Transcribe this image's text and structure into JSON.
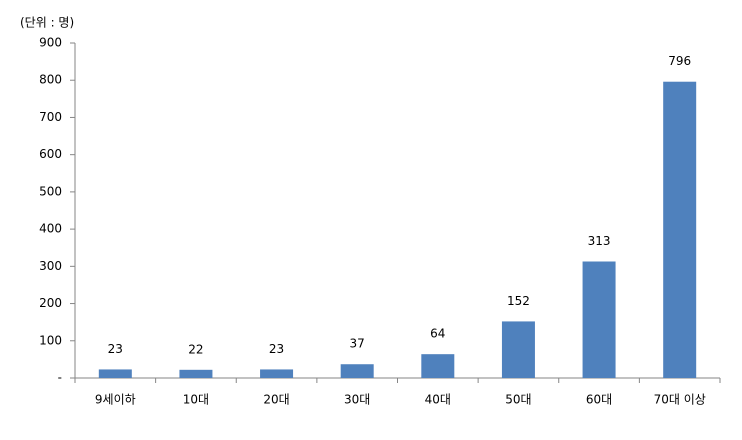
{
  "chart_data": {
    "type": "bar",
    "unit_label": "(단위 : 명)",
    "categories": [
      "9세이하",
      "10대",
      "20대",
      "30대",
      "40대",
      "50대",
      "60대",
      "70대 이상"
    ],
    "values": [
      23,
      22,
      23,
      37,
      64,
      152,
      313,
      796
    ],
    "color": "#4f81bd",
    "ylim": [
      0,
      900
    ],
    "yticks": [
      {
        "value": 0,
        "label": "-"
      },
      100,
      200,
      300,
      400,
      500,
      600,
      700,
      800,
      900
    ],
    "grid": false
  }
}
